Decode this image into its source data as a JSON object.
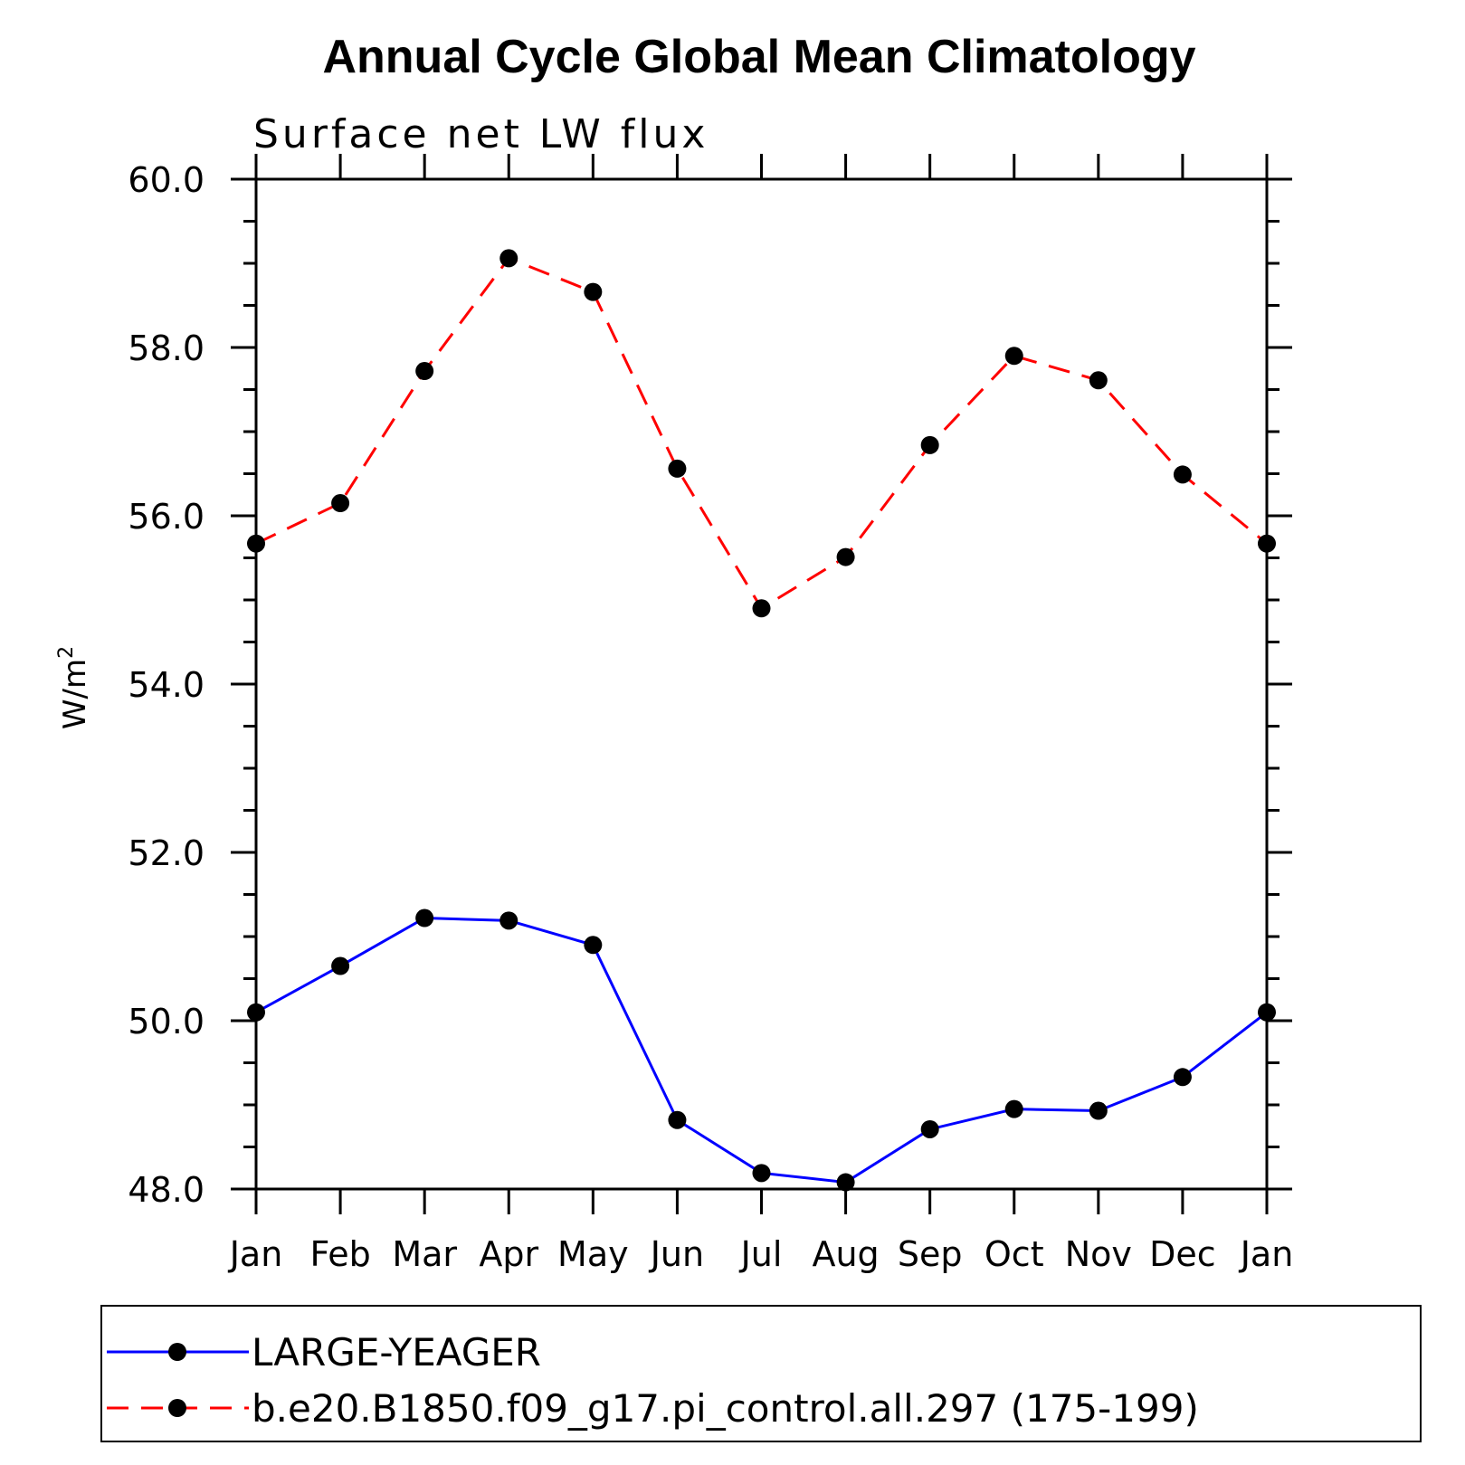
{
  "chart_data": {
    "type": "line",
    "title": "Annual Cycle Global Mean Climatology",
    "subtitle": "Surface net LW flux",
    "ylabel": "W/m",
    "ylabel_superscript": "2",
    "xlabel": "",
    "categories": [
      "Jan",
      "Feb",
      "Mar",
      "Apr",
      "May",
      "Jun",
      "Jul",
      "Aug",
      "Sep",
      "Oct",
      "Nov",
      "Dec",
      "Jan"
    ],
    "ylim": [
      48.0,
      60.0
    ],
    "yticks": [
      48.0,
      50.0,
      52.0,
      54.0,
      56.0,
      58.0,
      60.0
    ],
    "ytick_labels": [
      "48.0",
      "50.0",
      "52.0",
      "54.0",
      "56.0",
      "58.0",
      "60.0"
    ],
    "series": [
      {
        "name": "LARGE-YEAGER",
        "color": "#0000ff",
        "dash": "solid",
        "marker": "circle",
        "values": [
          50.1,
          50.65,
          51.22,
          51.19,
          50.9,
          48.82,
          48.19,
          48.08,
          48.71,
          48.95,
          48.93,
          49.33,
          50.1
        ]
      },
      {
        "name": "b.e20.B1850.f09_g17.pi_control.all.297 (175-199)",
        "color": "#ff0000",
        "dash": "dashed",
        "marker": "circle",
        "values": [
          55.67,
          56.15,
          57.72,
          59.06,
          58.66,
          56.56,
          54.9,
          55.51,
          56.84,
          57.9,
          57.61,
          56.49,
          55.67
        ]
      }
    ],
    "legend_position": "bottom",
    "grid": false
  }
}
